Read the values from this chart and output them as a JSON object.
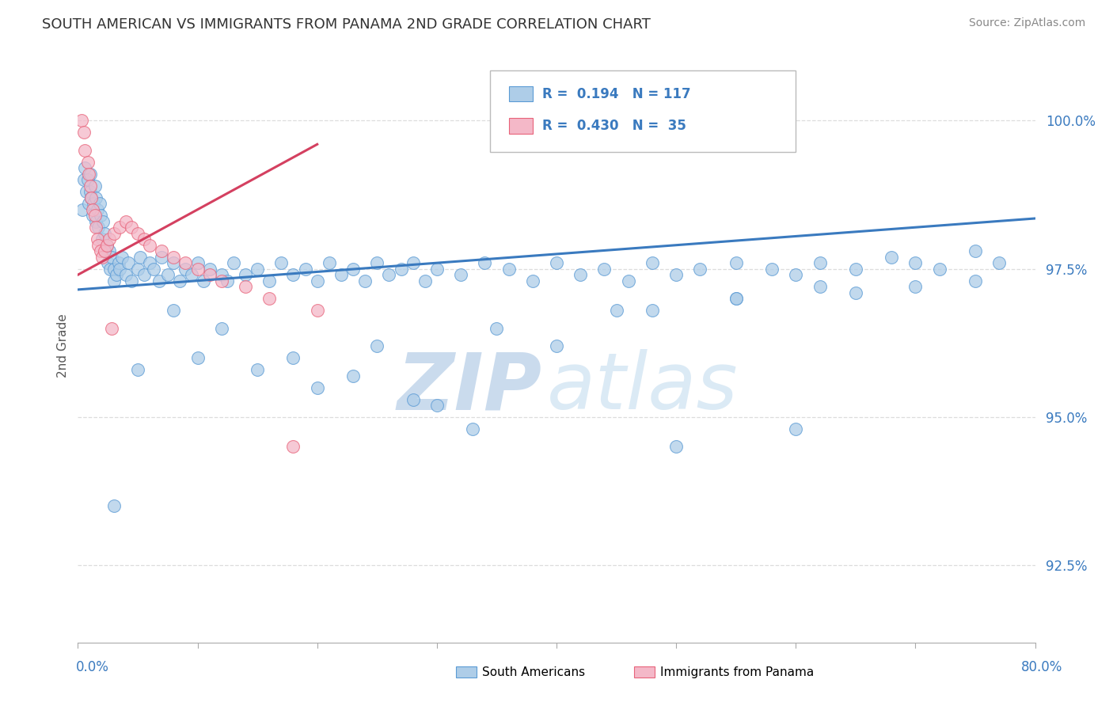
{
  "title": "SOUTH AMERICAN VS IMMIGRANTS FROM PANAMA 2ND GRADE CORRELATION CHART",
  "source": "Source: ZipAtlas.com",
  "ylabel": "2nd Grade",
  "yticks": [
    92.5,
    95.0,
    97.5,
    100.0
  ],
  "ytick_labels": [
    "92.5%",
    "95.0%",
    "97.5%",
    "100.0%"
  ],
  "xlim": [
    0.0,
    80.0
  ],
  "ylim": [
    91.2,
    101.2
  ],
  "blue_color": "#aecde8",
  "blue_edge_color": "#5b9bd5",
  "pink_color": "#f4b8c8",
  "pink_edge_color": "#e8637a",
  "blue_line_color": "#3a7abf",
  "pink_line_color": "#d44060",
  "grid_color": "#dddddd",
  "blue_trend_x0": 0.0,
  "blue_trend_y0": 97.15,
  "blue_trend_x1": 80.0,
  "blue_trend_y1": 98.35,
  "pink_trend_x0": 0.0,
  "pink_trend_y0": 97.4,
  "pink_trend_x1": 20.0,
  "pink_trend_y1": 99.6,
  "legend_r1": "R =  0.194",
  "legend_n1": "N = 117",
  "legend_r2": "R =  0.430",
  "legend_n2": "N =  35",
  "bottom_legend_blue": "South Americans",
  "bottom_legend_pink": "Immigrants from Panama",
  "blue_x": [
    0.4,
    0.5,
    0.6,
    0.7,
    0.8,
    0.9,
    1.0,
    1.0,
    1.1,
    1.2,
    1.3,
    1.4,
    1.5,
    1.5,
    1.6,
    1.7,
    1.8,
    1.9,
    2.0,
    2.1,
    2.2,
    2.3,
    2.4,
    2.5,
    2.6,
    2.7,
    2.8,
    3.0,
    3.0,
    3.2,
    3.4,
    3.5,
    3.7,
    4.0,
    4.2,
    4.5,
    5.0,
    5.2,
    5.5,
    6.0,
    6.3,
    6.8,
    7.0,
    7.5,
    8.0,
    8.5,
    9.0,
    9.5,
    10.0,
    10.5,
    11.0,
    12.0,
    12.5,
    13.0,
    14.0,
    15.0,
    16.0,
    17.0,
    18.0,
    19.0,
    20.0,
    21.0,
    22.0,
    23.0,
    24.0,
    25.0,
    26.0,
    27.0,
    28.0,
    29.0,
    30.0,
    32.0,
    34.0,
    36.0,
    38.0,
    40.0,
    42.0,
    44.0,
    46.0,
    48.0,
    50.0,
    52.0,
    55.0,
    58.0,
    60.0,
    62.0,
    65.0,
    68.0,
    70.0,
    72.0,
    75.0,
    77.0,
    15.0,
    25.0,
    35.0,
    45.0,
    55.0,
    65.0,
    70.0,
    75.0,
    60.0,
    50.0,
    30.0,
    20.0,
    10.0,
    5.0,
    3.0,
    8.0,
    12.0,
    18.0,
    23.0,
    28.0,
    33.0,
    40.0,
    48.0,
    55.0,
    62.0
  ],
  "blue_y": [
    98.5,
    99.0,
    99.2,
    98.8,
    99.0,
    98.6,
    98.8,
    99.1,
    98.7,
    98.4,
    98.6,
    98.9,
    98.3,
    98.7,
    98.5,
    98.2,
    98.6,
    98.4,
    98.0,
    98.3,
    98.1,
    97.8,
    97.9,
    97.6,
    97.8,
    97.5,
    97.7,
    97.5,
    97.3,
    97.4,
    97.6,
    97.5,
    97.7,
    97.4,
    97.6,
    97.3,
    97.5,
    97.7,
    97.4,
    97.6,
    97.5,
    97.3,
    97.7,
    97.4,
    97.6,
    97.3,
    97.5,
    97.4,
    97.6,
    97.3,
    97.5,
    97.4,
    97.3,
    97.6,
    97.4,
    97.5,
    97.3,
    97.6,
    97.4,
    97.5,
    97.3,
    97.6,
    97.4,
    97.5,
    97.3,
    97.6,
    97.4,
    97.5,
    97.6,
    97.3,
    97.5,
    97.4,
    97.6,
    97.5,
    97.3,
    97.6,
    97.4,
    97.5,
    97.3,
    97.6,
    97.4,
    97.5,
    97.6,
    97.5,
    97.4,
    97.6,
    97.5,
    97.7,
    97.6,
    97.5,
    97.8,
    97.6,
    95.8,
    96.2,
    96.5,
    96.8,
    97.0,
    97.1,
    97.2,
    97.3,
    94.8,
    94.5,
    95.2,
    95.5,
    96.0,
    95.8,
    93.5,
    96.8,
    96.5,
    96.0,
    95.7,
    95.3,
    94.8,
    96.2,
    96.8,
    97.0,
    97.2
  ],
  "pink_x": [
    0.3,
    0.5,
    0.6,
    0.8,
    0.9,
    1.0,
    1.1,
    1.2,
    1.4,
    1.5,
    1.6,
    1.7,
    1.9,
    2.0,
    2.2,
    2.4,
    2.6,
    3.0,
    3.5,
    4.0,
    4.5,
    5.0,
    5.5,
    6.0,
    7.0,
    8.0,
    9.0,
    10.0,
    11.0,
    12.0,
    14.0,
    16.0,
    18.0,
    20.0,
    2.8
  ],
  "pink_y": [
    100.0,
    99.8,
    99.5,
    99.3,
    99.1,
    98.9,
    98.7,
    98.5,
    98.4,
    98.2,
    98.0,
    97.9,
    97.8,
    97.7,
    97.8,
    97.9,
    98.0,
    98.1,
    98.2,
    98.3,
    98.2,
    98.1,
    98.0,
    97.9,
    97.8,
    97.7,
    97.6,
    97.5,
    97.4,
    97.3,
    97.2,
    97.0,
    94.5,
    96.8,
    96.5
  ]
}
